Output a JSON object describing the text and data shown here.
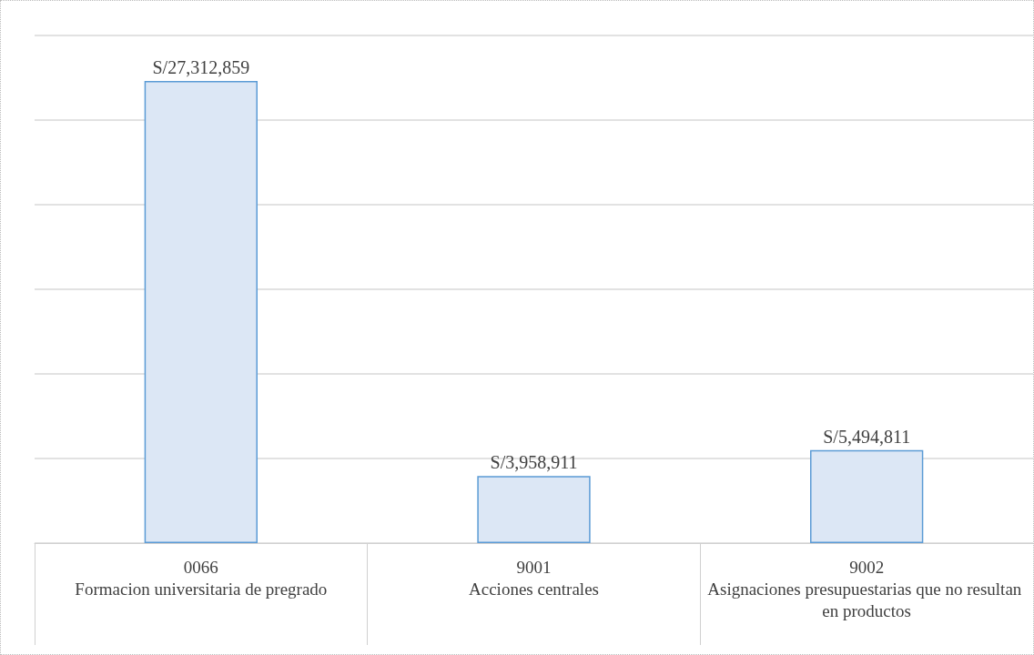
{
  "chart_data": {
    "type": "bar",
    "categories": [
      "0066\nFormacion universitaria de pregrado",
      "9001\nAcciones centrales",
      "9002\nAsignaciones presupuestarias que no resultan en productos"
    ],
    "values": [
      27312859,
      3958911,
      5494811
    ],
    "value_labels": [
      "S/27,312,859",
      "S/3,958,911",
      "S/5,494,811"
    ],
    "color": "#dce7f5",
    "ylim": [
      0,
      30000000
    ],
    "yticks": [
      {
        "value": 0,
        "label": null
      },
      {
        "value": 5000000,
        "label": null
      },
      {
        "value": 10000000,
        "label": null
      },
      {
        "value": 15000000,
        "label": null
      },
      {
        "value": 20000000,
        "label": null
      },
      {
        "value": 25000000,
        "label": null
      },
      {
        "value": 30000000,
        "label": null
      }
    ],
    "tick_labels": "x",
    "grid": "y"
  }
}
